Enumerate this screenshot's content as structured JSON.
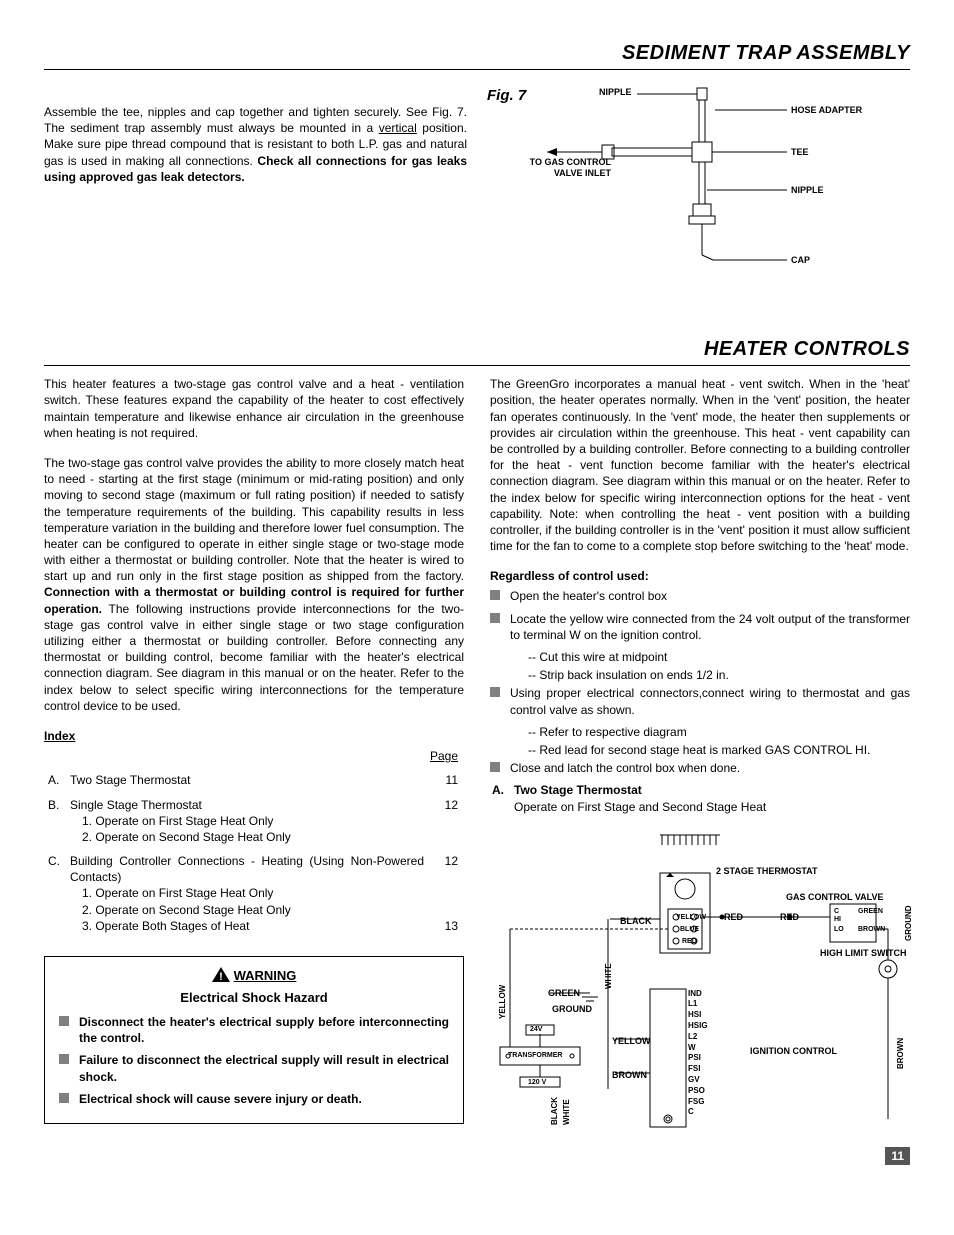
{
  "section1_title": "SEDIMENT TRAP ASSEMBLY",
  "section2_title": "HEATER CONTROLS",
  "fig_label": "Fig. 7",
  "top_para_pre": "Assemble the tee, nipples and cap together and tighten securely.  See Fig. 7.  The sediment trap assembly must always be mounted in a ",
  "top_para_vertical": "vertical",
  "top_para_mid": " position.  Make sure pipe thread compound that is resistant to both L.P. gas and natural gas is used in making all connections.  ",
  "top_para_bold": "Check all connections for gas leaks using approved gas leak detectors.",
  "fig7": {
    "labels": {
      "nipple1": "NIPPLE",
      "hose_adapter": "HOSE ADAPTER",
      "tee": "TEE",
      "to_gas": "TO GAS CONTROL",
      "valve_inlet": "VALVE INLET",
      "nipple2": "NIPPLE",
      "cap": "CAP"
    }
  },
  "left_p1": "This heater features a two-stage gas control valve and a heat - ventilation switch.  These features expand the capability of the heater to cost effectively maintain temperature and likewise enhance air circulation in the greenhouse when heating is not required.",
  "left_p2_pre": "The two-stage gas control valve provides the ability to more closely match heat to need - starting at the first stage (minimum or mid-rating position) and only moving to second stage (maximum or full rating position) if needed to satisfy the temperature requirements of the building.  This capability results in less temperature variation in the building and therefore lower fuel consumption.  The heater can be configured to operate in either single stage or two-stage mode with either a thermostat or building controller.  Note that the heater is wired to start up and run only in the first stage position as shipped from the factory.  ",
  "left_p2_bold": "Connection with a thermostat or building control is required for further operation.",
  "left_p2_post": "    The following instructions provide interconnections for the two-stage gas control valve in either single stage or two stage configuration utilizing either a thermostat or building controller.  Before connecting any thermostat or building control, become familiar with the heater's electrical connection diagram.  See diagram in this manual or on the heater.  Refer to the index below to select specific wiring interconnections for the temperature control device to be used.",
  "index_label": "Index",
  "page_label": "Page",
  "index": [
    {
      "letter": "A.",
      "text": "Two Stage Thermostat",
      "page": "11",
      "subs": []
    },
    {
      "letter": "B.",
      "text": "Single Stage Thermostat",
      "page": "12",
      "subs": [
        "1.  Operate on First Stage Heat Only",
        "2.  Operate on Second Stage Heat Only"
      ]
    },
    {
      "letter": "C.",
      "text": "Building Controller Connections - Heating (Using Non-Powered Contacts)",
      "page": "12",
      "subs": [
        "1.  Operate on First Stage Heat Only",
        "2.  Operate on Second Stage Heat Only",
        "3.  Operate Both Stages of Heat"
      ],
      "extra_page": "13"
    }
  ],
  "warning": {
    "heading": "WARNING",
    "sub": "Electrical Shock Hazard",
    "items": [
      "Disconnect the heater's electrical supply before interconnecting the control.",
      "Failure to disconnect the electrical supply will result in electrical shock.",
      "Electrical shock will cause severe injury or death."
    ]
  },
  "right_p1": "The GreenGro incorporates a manual heat - vent switch.  When in the 'heat' position, the heater operates normally.  When in the 'vent' position, the heater fan operates continuously.  In the 'vent' mode, the heater then supplements or provides air circulation within the greenhouse.  This heat - vent capability can be controlled by a building controller.  Before connecting to a building controller for the heat - vent function become familiar with the heater's electrical connection diagram.  See diagram within this manual or on the heater.  Refer to the index below for specific wiring interconnection options for the heat - vent capability.  Note: when controlling the heat - vent position with a building controller, if the building controller is in the 'vent' position it must allow sufficient time for the fan to come to a complete stop before switching to the 'heat' mode.",
  "right_h1": "Regardless of control used:",
  "right_steps": [
    {
      "text": "Open the heater's control box"
    },
    {
      "text": "Locate the yellow wire connected from the 24 volt output of the transformer to terminal W on the ignition control.",
      "subs": [
        "-- Cut this wire at midpoint",
        "-- Strip back insulation on ends 1/2 in."
      ]
    },
    {
      "text": "Using proper electrical connectors,connect wiring to thermostat and gas control valve as shown.",
      "subs": [
        "-- Refer to respective diagram",
        "-- Red lead for second stage heat is marked GAS CONTROL HI."
      ]
    },
    {
      "text": "Close and latch the control box when done."
    }
  ],
  "right_a_label": "A.",
  "right_a_title": "Two Stage Thermostat",
  "right_a_sub": "Operate on First Stage and  Second Stage Heat",
  "wiring": {
    "thermostat": "2 STAGE THERMOSTAT",
    "gcv": "GAS CONTROL VALVE",
    "hls": "HIGH LIMIT SWITCH",
    "ignition": "IGNITION CONTROL",
    "transformer": "TRANSFORMER",
    "v24": "24V",
    "v120": "120 V",
    "colors": {
      "yellow": "YELLOW",
      "red": "RED",
      "black": "BLACK",
      "white": "WHITE",
      "green": "GREEN",
      "ground": "GROUND",
      "blue": "BLUE",
      "brown": "BROWN"
    },
    "gcv_terms": {
      "c": "C",
      "hi": "HI",
      "lo": "LO"
    },
    "terminals": [
      "IND",
      "L1",
      "HSI",
      "HSIG",
      "L2",
      "W",
      "PSI",
      "FSI",
      "GV",
      "PSO",
      "FSG",
      "C"
    ]
  },
  "page_number": "11"
}
